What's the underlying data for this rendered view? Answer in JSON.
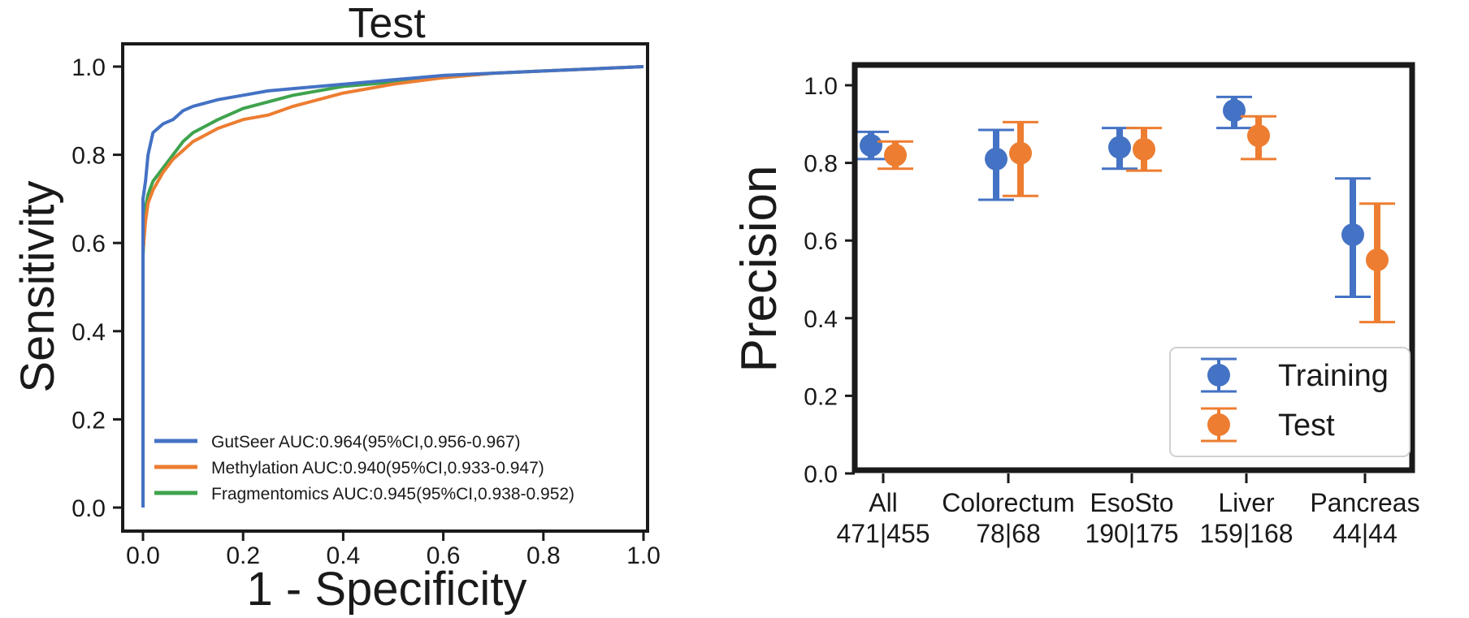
{
  "chart_data": [
    {
      "type": "line",
      "title": "Test",
      "xlabel": "1 - Specificity",
      "ylabel": "Sensitivity",
      "xlim": [
        0,
        1
      ],
      "ylim": [
        0,
        1
      ],
      "xticks": [
        "0.0",
        "0.2",
        "0.4",
        "0.6",
        "0.8",
        "1.0"
      ],
      "yticks": [
        "0.0",
        "0.2",
        "0.4",
        "0.6",
        "0.8",
        "1.0"
      ],
      "grid": false,
      "legend_position": "bottom-left",
      "series": [
        {
          "name": "GutSeer AUC:0.964(95%CI,0.956-0.967)",
          "color": "#4472c4",
          "x": [
            0,
            0,
            0.005,
            0.01,
            0.02,
            0.04,
            0.06,
            0.08,
            0.1,
            0.15,
            0.2,
            0.25,
            0.3,
            0.4,
            0.5,
            0.6,
            0.7,
            0.8,
            0.9,
            1.0
          ],
          "y": [
            0,
            0.7,
            0.74,
            0.8,
            0.85,
            0.87,
            0.88,
            0.9,
            0.91,
            0.925,
            0.935,
            0.945,
            0.95,
            0.96,
            0.97,
            0.98,
            0.985,
            0.99,
            0.995,
            1.0
          ]
        },
        {
          "name": "Methylation AUC:0.940(95%CI,0.933-0.947)",
          "color": "#ed7d31",
          "x": [
            0,
            0,
            0.005,
            0.01,
            0.02,
            0.04,
            0.06,
            0.08,
            0.1,
            0.15,
            0.2,
            0.25,
            0.3,
            0.4,
            0.5,
            0.6,
            0.7,
            0.8,
            0.9,
            1.0
          ],
          "y": [
            0,
            0.58,
            0.65,
            0.69,
            0.72,
            0.76,
            0.79,
            0.81,
            0.83,
            0.86,
            0.88,
            0.89,
            0.91,
            0.94,
            0.96,
            0.975,
            0.985,
            0.99,
            0.995,
            1.0
          ]
        },
        {
          "name": "Fragmentomics AUC:0.945(95%CI,0.938-0.952)",
          "color": "#3fa34d",
          "x": [
            0,
            0,
            0.005,
            0.01,
            0.02,
            0.04,
            0.06,
            0.08,
            0.1,
            0.15,
            0.2,
            0.25,
            0.3,
            0.4,
            0.5,
            0.6,
            0.7,
            0.8,
            0.9,
            1.0
          ],
          "y": [
            0,
            0.57,
            0.68,
            0.71,
            0.74,
            0.77,
            0.8,
            0.83,
            0.85,
            0.88,
            0.905,
            0.92,
            0.935,
            0.955,
            0.965,
            0.975,
            0.985,
            0.99,
            0.995,
            1.0
          ]
        }
      ]
    },
    {
      "type": "scatter",
      "title": "",
      "xlabel": "",
      "ylabel": "Precision",
      "ylim": [
        0,
        1.05
      ],
      "yticks": [
        "0.0",
        "0.2",
        "0.4",
        "0.6",
        "0.8",
        "1.0"
      ],
      "grid": false,
      "legend_position": "bottom-right",
      "categories": [
        {
          "name": "All",
          "counts": "471|455"
        },
        {
          "name": "Colorectum",
          "counts": "78|68"
        },
        {
          "name": "EsoSto",
          "counts": "190|175"
        },
        {
          "name": "Liver",
          "counts": "159|168"
        },
        {
          "name": "Pancreas",
          "counts": "44|44"
        }
      ],
      "series": [
        {
          "name": "Training",
          "color": "#4472c4",
          "values": [
            0.845,
            0.81,
            0.84,
            0.935,
            0.615
          ],
          "lower": [
            0.81,
            0.705,
            0.785,
            0.89,
            0.455
          ],
          "upper": [
            0.88,
            0.885,
            0.89,
            0.97,
            0.76
          ]
        },
        {
          "name": "Test",
          "color": "#ed7d31",
          "values": [
            0.82,
            0.825,
            0.835,
            0.87,
            0.55
          ],
          "lower": [
            0.785,
            0.715,
            0.78,
            0.81,
            0.39
          ],
          "upper": [
            0.855,
            0.905,
            0.89,
            0.92,
            0.695
          ]
        }
      ]
    }
  ]
}
